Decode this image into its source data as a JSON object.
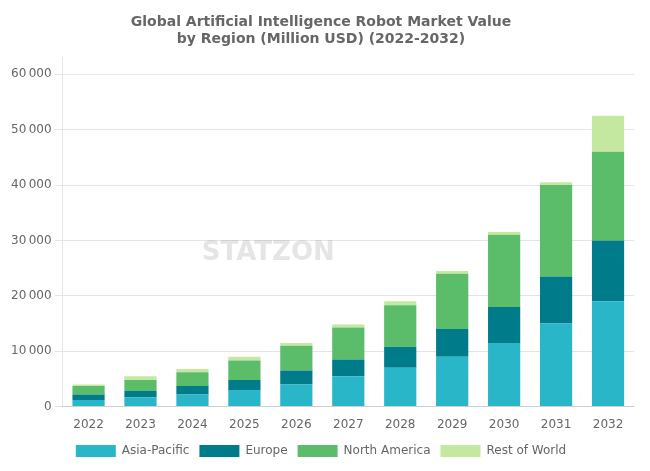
{
  "chart_data": {
    "type": "bar",
    "title": "Global Artificial Intelligence Robot Market Value\nby Region (Million USD) (2022-2032)",
    "categories": [
      "2022",
      "2023",
      "2024",
      "2025",
      "2026",
      "2027",
      "2028",
      "2029",
      "2030",
      "2031",
      "2032"
    ],
    "series": [
      {
        "name": "Asia-Pacific",
        "color": "#29B6C8",
        "values": [
          1200,
          1700,
          2200,
          3000,
          4000,
          5500,
          7000,
          9000,
          11500,
          15000,
          19000
        ]
      },
      {
        "name": "Europe",
        "color": "#007B8A",
        "values": [
          1000,
          1100,
          1500,
          1800,
          2500,
          3000,
          3800,
          5000,
          6500,
          8500,
          11000
        ]
      },
      {
        "name": "North America",
        "color": "#5BBD6A",
        "values": [
          1500,
          2000,
          2500,
          3500,
          4500,
          5800,
          7500,
          10000,
          13000,
          16500,
          16000
        ]
      },
      {
        "name": "Rest of World",
        "color": "#C5E8A0",
        "values": [
          300,
          700,
          600,
          700,
          500,
          500,
          700,
          500,
          500,
          500,
          6500
        ]
      }
    ],
    "stacked": true,
    "ylim": [
      0,
      63000
    ],
    "yticks": [
      0,
      {
        "value": 10000,
        "label": "10 000"
      },
      {
        "value": 20000,
        "label": "20 000"
      },
      {
        "value": 30000,
        "label": "30 000"
      },
      {
        "value": 40000,
        "label": "40 000"
      },
      {
        "value": 50000,
        "label": "50 000"
      },
      {
        "value": 60000,
        "label": "60 000"
      }
    ],
    "grid": true,
    "legend": "bottom",
    "annotations": [
      {
        "text": "STATZON"
      }
    ]
  }
}
